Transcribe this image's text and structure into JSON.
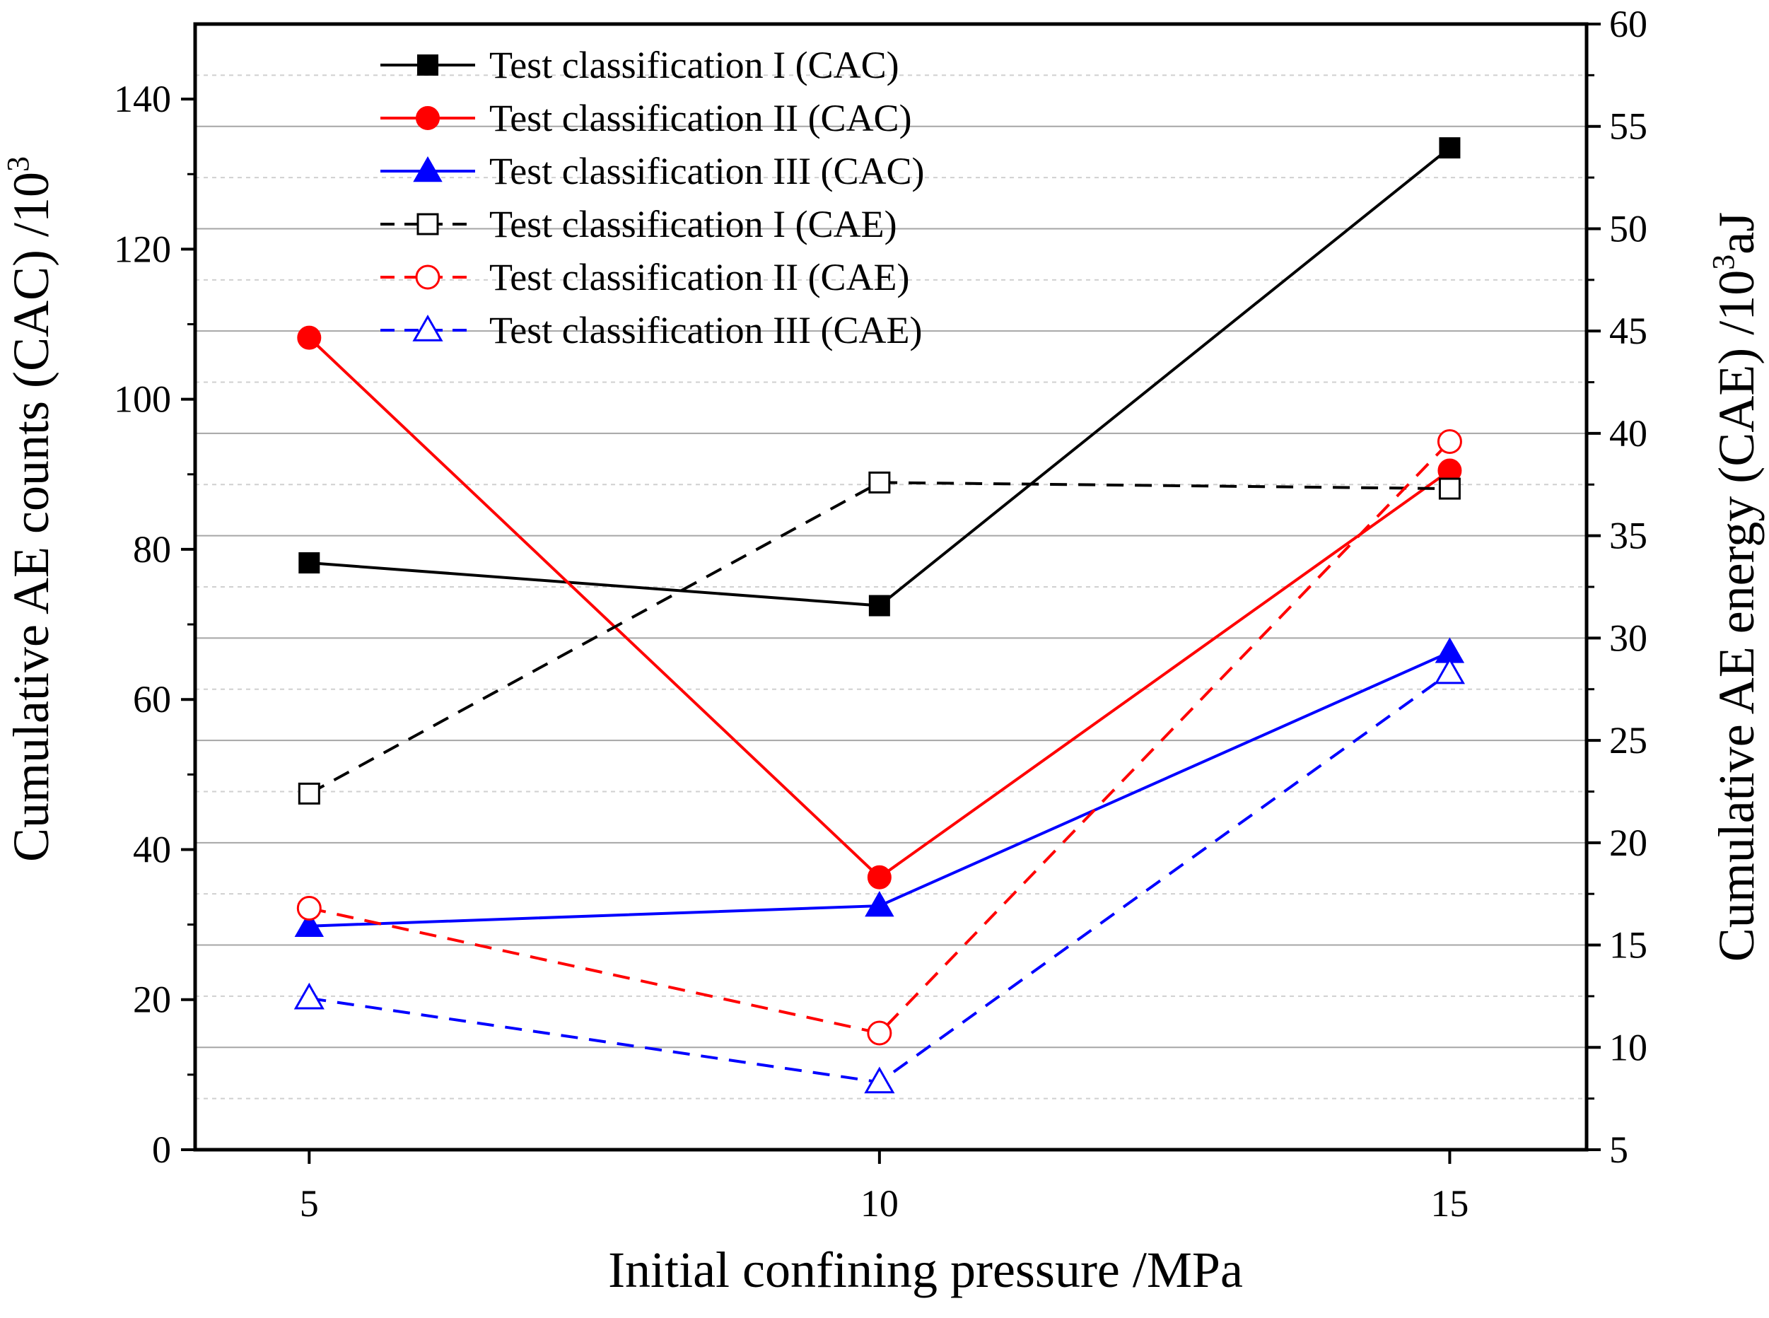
{
  "chart_data": {
    "type": "line",
    "x": [
      5,
      10,
      15
    ],
    "xlabel": "Initial confining pressure /MPa",
    "ylabel_left": {
      "main": "Cumulative AE counts (CAC) /10",
      "sup": "3"
    },
    "ylabel_right": {
      "main_pre": "Cumulative AE energy (CAE) /10",
      "sup": "3",
      "main_post": "aJ"
    },
    "xlim": [
      4,
      16.2
    ],
    "ylim_left": [
      0,
      150
    ],
    "ylim_right": [
      5,
      60
    ],
    "x_ticks": [
      5,
      10,
      15
    ],
    "y_ticks_left": [
      0,
      20,
      40,
      60,
      80,
      100,
      120,
      140
    ],
    "y_ticks_right": [
      5,
      10,
      15,
      20,
      25,
      30,
      35,
      40,
      45,
      50,
      55,
      60
    ],
    "grid": true,
    "legend_position": "top-left",
    "series": [
      {
        "name": "Test classification I (CAC)",
        "axis": "left",
        "values": [
          78.2,
          72.5,
          133.5
        ],
        "color": "#000000",
        "dash": "solid",
        "marker": "square",
        "filled": true
      },
      {
        "name": "Test classification II (CAC)",
        "axis": "left",
        "values": [
          108.2,
          36.3,
          90.5
        ],
        "color": "#ff0000",
        "dash": "solid",
        "marker": "circle",
        "filled": true
      },
      {
        "name": "Test classification III (CAC)",
        "axis": "left",
        "values": [
          29.8,
          32.5,
          66.3
        ],
        "color": "#0000ff",
        "dash": "solid",
        "marker": "triangle",
        "filled": true
      },
      {
        "name": "Test classification I (CAE)",
        "axis": "right",
        "values": [
          22.4,
          37.6,
          37.3
        ],
        "color": "#000000",
        "dash": "dashed",
        "marker": "square",
        "filled": false
      },
      {
        "name": "Test classification II (CAE)",
        "axis": "right",
        "values": [
          16.8,
          10.7,
          39.6
        ],
        "color": "#ff0000",
        "dash": "dashed",
        "marker": "circle",
        "filled": false
      },
      {
        "name": "Test classification III (CAE)",
        "axis": "right",
        "values": [
          12.4,
          8.3,
          28.3
        ],
        "color": "#0000ff",
        "dash": "dashed",
        "marker": "triangle",
        "filled": false
      }
    ]
  }
}
